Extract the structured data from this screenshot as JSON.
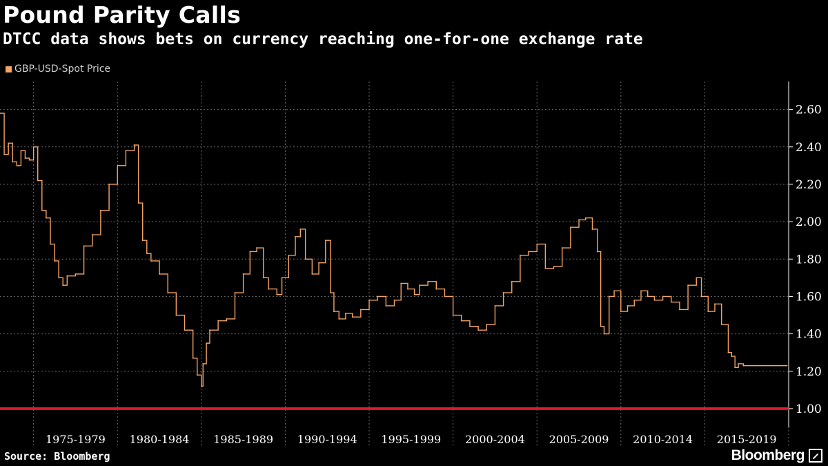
{
  "header": {
    "title": "Pound Parity Calls",
    "subtitle": "DTCC data shows bets on currency reaching one-for-one exchange rate"
  },
  "footer": {
    "source": "Source: Bloomberg",
    "brand": "Bloomberg",
    "brand_icon": "bloomberg-logo-icon"
  },
  "colors": {
    "background": "#000000",
    "series": "#f5a563",
    "parity_line": "#e0192f",
    "grid": "#6a6a6a",
    "axis_text": "#ffffff"
  },
  "chart_data": {
    "type": "line",
    "title": "Pound Parity Calls",
    "subtitle": "DTCC data shows bets on currency reaching one-for-one exchange rate",
    "xlabel": "",
    "ylabel": "",
    "x_range": [
      1973,
      2020
    ],
    "ylim": [
      0.9,
      2.75
    ],
    "y_ticks": [
      1.0,
      1.2,
      1.4,
      1.6,
      1.8,
      2.0,
      2.2,
      2.4,
      2.6
    ],
    "y_tick_labels": [
      "1.00",
      "1.20",
      "1.40",
      "1.60",
      "1.80",
      "2.00",
      "2.20",
      "2.40",
      "2.60"
    ],
    "x_categories": [
      "1975-1979",
      "1980-1984",
      "1985-1989",
      "1990-1994",
      "1995-1999",
      "2000-2004",
      "2005-2009",
      "2010-2014",
      "2015-2019"
    ],
    "grid": true,
    "y_axis_position": "right",
    "legend_position": "top-left",
    "reference_lines": [
      {
        "y": 1.0,
        "color": "#e0192f"
      }
    ],
    "series": [
      {
        "name": "GBP-USD-Spot Price",
        "color": "#f5a563",
        "x": [
          1973.0,
          1973.25,
          1973.5,
          1973.75,
          1974.0,
          1974.25,
          1974.5,
          1974.75,
          1975.0,
          1975.25,
          1975.5,
          1975.75,
          1976.0,
          1976.25,
          1976.5,
          1976.75,
          1977.0,
          1977.5,
          1978.0,
          1978.5,
          1979.0,
          1979.5,
          1980.0,
          1980.5,
          1981.0,
          1981.25,
          1981.5,
          1981.75,
          1982.0,
          1982.5,
          1983.0,
          1983.5,
          1984.0,
          1984.5,
          1984.75,
          1985.0,
          1985.1,
          1985.3,
          1985.5,
          1986.0,
          1986.5,
          1987.0,
          1987.5,
          1987.9,
          1988.3,
          1988.7,
          1989.0,
          1989.5,
          1989.8,
          1990.2,
          1990.6,
          1990.9,
          1991.2,
          1991.6,
          1992.0,
          1992.4,
          1992.7,
          1992.9,
          1993.2,
          1993.6,
          1994.0,
          1994.5,
          1995.0,
          1995.5,
          1996.0,
          1996.5,
          1996.9,
          1997.3,
          1997.7,
          1998.0,
          1998.5,
          1999.0,
          1999.5,
          2000.0,
          2000.5,
          2001.0,
          2001.5,
          2002.0,
          2002.5,
          2003.0,
          2003.5,
          2004.0,
          2004.5,
          2005.0,
          2005.5,
          2006.0,
          2006.5,
          2007.0,
          2007.5,
          2007.9,
          2008.3,
          2008.6,
          2008.8,
          2009.0,
          2009.3,
          2009.6,
          2010.0,
          2010.4,
          2010.8,
          2011.2,
          2011.6,
          2012.0,
          2012.5,
          2013.0,
          2013.5,
          2014.0,
          2014.5,
          2014.8,
          2015.2,
          2015.6,
          2016.0,
          2016.4,
          2016.6,
          2016.8,
          2017.0,
          2017.3,
          2019.9
        ],
        "values": [
          2.58,
          2.36,
          2.42,
          2.32,
          2.3,
          2.38,
          2.34,
          2.33,
          2.4,
          2.22,
          2.06,
          2.02,
          1.88,
          1.79,
          1.7,
          1.66,
          1.71,
          1.72,
          1.87,
          1.93,
          2.06,
          2.2,
          2.3,
          2.38,
          2.41,
          2.1,
          1.9,
          1.83,
          1.79,
          1.72,
          1.62,
          1.5,
          1.42,
          1.27,
          1.18,
          1.12,
          1.24,
          1.35,
          1.42,
          1.47,
          1.48,
          1.62,
          1.72,
          1.84,
          1.86,
          1.7,
          1.64,
          1.61,
          1.7,
          1.82,
          1.92,
          1.96,
          1.8,
          1.72,
          1.78,
          1.9,
          1.62,
          1.52,
          1.48,
          1.51,
          1.49,
          1.53,
          1.58,
          1.6,
          1.55,
          1.58,
          1.67,
          1.64,
          1.61,
          1.66,
          1.68,
          1.64,
          1.6,
          1.5,
          1.47,
          1.44,
          1.42,
          1.45,
          1.55,
          1.62,
          1.68,
          1.82,
          1.84,
          1.88,
          1.75,
          1.76,
          1.86,
          1.97,
          2.01,
          2.02,
          1.96,
          1.84,
          1.44,
          1.4,
          1.6,
          1.63,
          1.52,
          1.55,
          1.58,
          1.63,
          1.6,
          1.58,
          1.6,
          1.57,
          1.53,
          1.66,
          1.7,
          1.6,
          1.52,
          1.56,
          1.45,
          1.3,
          1.28,
          1.22,
          1.24,
          1.23,
          1.23
        ]
      }
    ]
  }
}
